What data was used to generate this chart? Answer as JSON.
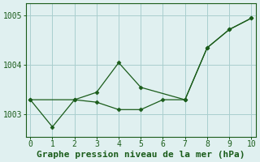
{
  "line1_x": [
    0,
    1,
    2,
    3,
    4,
    5,
    6,
    7,
    8,
    9,
    10
  ],
  "line1_y": [
    1003.3,
    1002.75,
    1003.3,
    1003.25,
    1003.1,
    1003.1,
    1003.3,
    1003.3,
    1004.35,
    1004.72,
    1004.95
  ],
  "line2_x": [
    0,
    2,
    3,
    4,
    5,
    7,
    8,
    9,
    10
  ],
  "line2_y": [
    1003.3,
    1003.3,
    1003.45,
    1004.05,
    1003.55,
    1003.3,
    1004.35,
    1004.72,
    1004.95
  ],
  "line_color": "#1a5c1a",
  "bg_color": "#e0f0f0",
  "grid_color": "#aacece",
  "xlabel": "Graphe pression niveau de la mer (hPa)",
  "xlim": [
    -0.2,
    10.2
  ],
  "ylim": [
    1002.55,
    1005.25
  ],
  "yticks": [
    1003,
    1004,
    1005
  ],
  "xticks": [
    0,
    1,
    2,
    3,
    4,
    5,
    6,
    7,
    8,
    9,
    10
  ],
  "tick_fontsize": 7,
  "xlabel_fontsize": 8
}
